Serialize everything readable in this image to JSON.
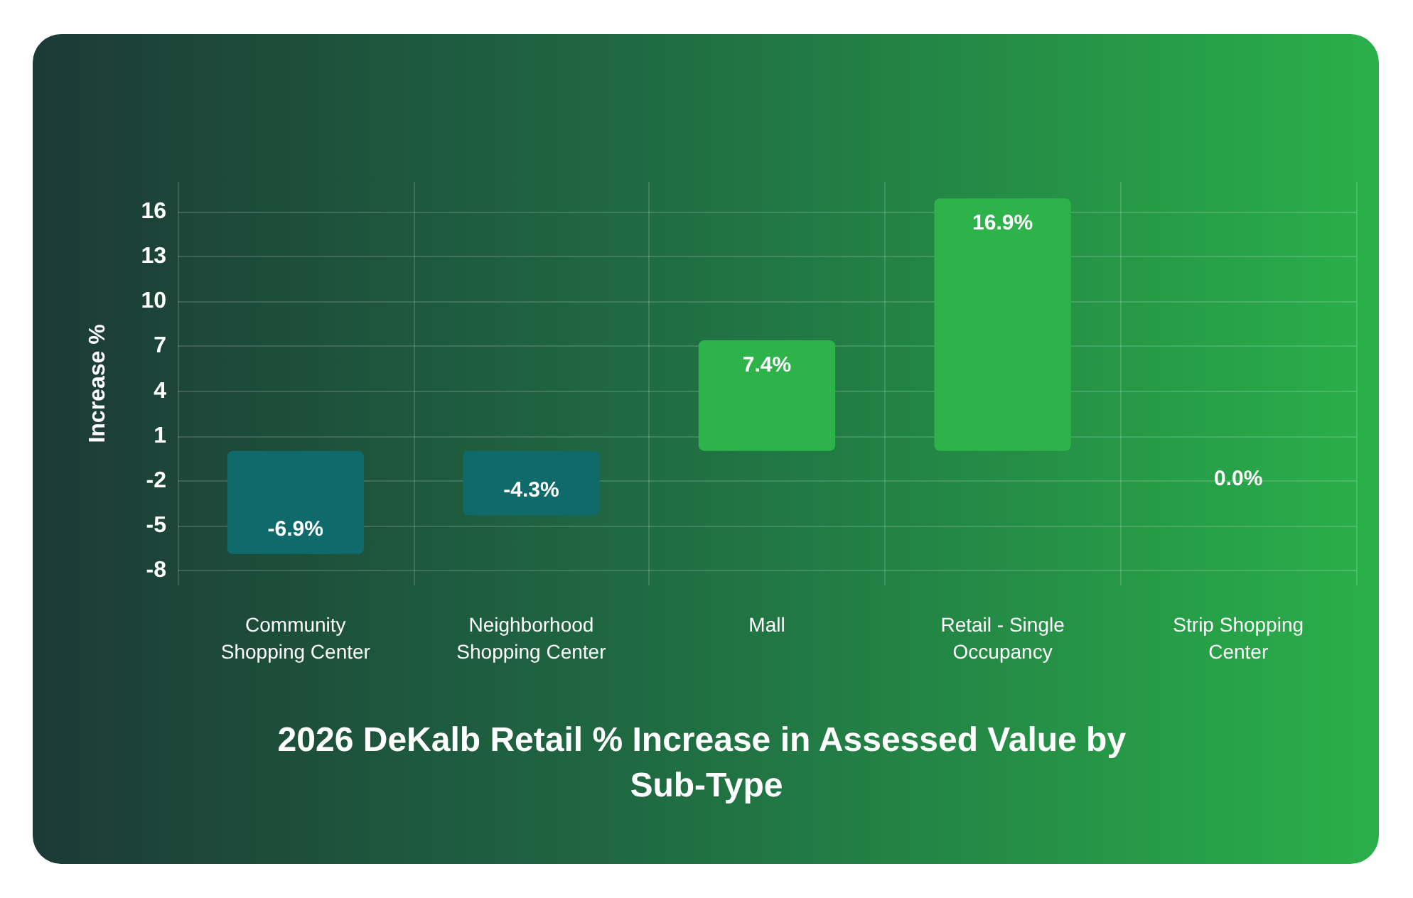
{
  "chart_data": {
    "type": "bar",
    "title": "2026 DeKalb Retail % Increase in Assessed Value by Sub-Type",
    "ylabel": "Increase %",
    "categories": [
      "Community\nShopping Center",
      "Neighborhood\nShopping Center",
      "Mall",
      "Retail - Single\nOccupancy",
      "Strip Shopping\nCenter"
    ],
    "values": [
      -6.9,
      -4.3,
      7.4,
      16.9,
      0.0
    ],
    "colors": [
      "#0f6b6b",
      "#0f6b6b",
      "#2db34a",
      "#2db34a",
      "#2db34a"
    ],
    "value_labels": [
      "-6.9%",
      "-4.3%",
      "7.4%",
      "16.9%",
      "0.0%"
    ],
    "ylim": [
      -9,
      18
    ],
    "yticks": [
      -8,
      -5,
      -2,
      1,
      4,
      7,
      10,
      13,
      16
    ],
    "grid": true
  }
}
